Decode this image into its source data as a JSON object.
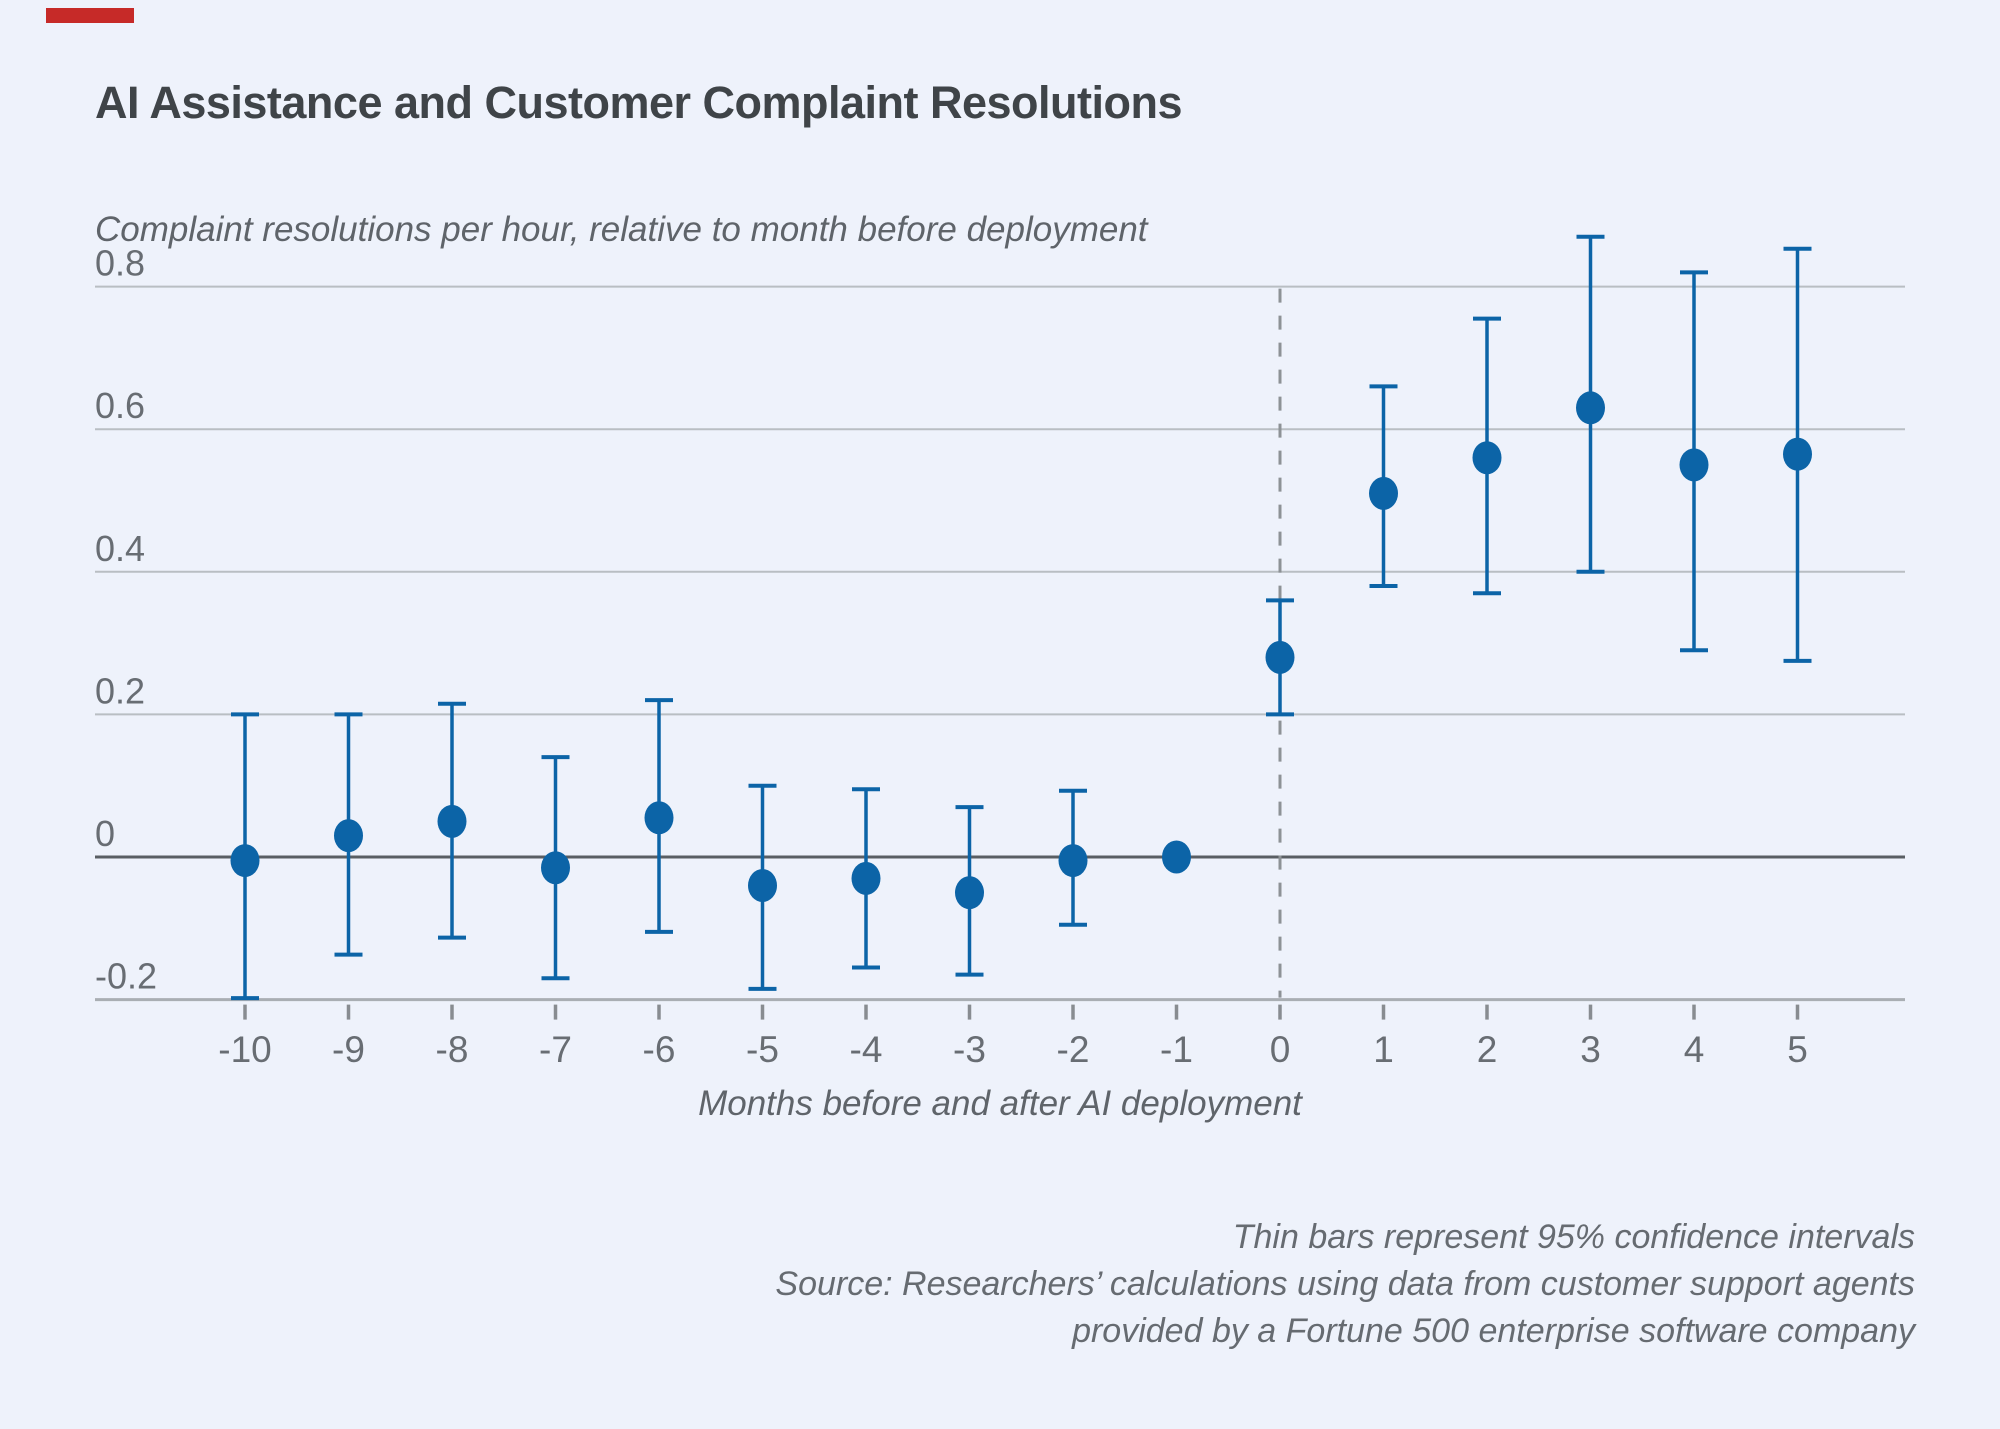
{
  "figure": {
    "accent_color": "#c62a28",
    "background_color": "#eef2fb"
  },
  "chart_data": {
    "type": "scatter",
    "title": "AI Assistance and Customer Complaint Resolutions",
    "ylabel": "Complaint resolutions per hour, relative to month before deployment",
    "xlabel": "Months before and after AI deployment",
    "footnotes": [
      "Thin bars represent 95% confidence intervals",
      "Source: Researchers’ calculations using data from customer support agents",
      "provided by a Fortune 500 enterprise software company"
    ],
    "x": [
      -10,
      -9,
      -8,
      -7,
      -6,
      -5,
      -4,
      -3,
      -2,
      -1,
      0,
      1,
      2,
      3,
      4,
      5
    ],
    "x_tick_labels": [
      "-10",
      "-9",
      "-8",
      "-7",
      "-6",
      "-5",
      "-4",
      "-3",
      "-2",
      "-1",
      "0",
      "1",
      "2",
      "3",
      "4",
      "5"
    ],
    "estimates": [
      -0.005,
      0.03,
      0.05,
      -0.015,
      0.055,
      -0.04,
      -0.03,
      -0.05,
      -0.005,
      0,
      0.28,
      0.51,
      0.56,
      0.63,
      0.55,
      0.565
    ],
    "ci_low": [
      -0.198,
      -0.137,
      -0.113,
      -0.17,
      -0.105,
      -0.185,
      -0.155,
      -0.165,
      -0.095,
      null,
      0.2,
      0.38,
      0.37,
      0.4,
      0.29,
      0.275
    ],
    "ci_high": [
      0.2,
      0.2,
      0.215,
      0.14,
      0.22,
      0.1,
      0.095,
      0.07,
      0.093,
      null,
      0.36,
      0.66,
      0.755,
      0.87,
      0.82,
      0.853
    ],
    "reference_month": -1,
    "event_line_x": 0,
    "y_ticks": [
      0.8,
      0.6,
      0.4,
      0.2,
      0,
      -0.2
    ],
    "y_tick_labels": [
      "0.8",
      "0.6",
      "0.4",
      "0.2",
      "0",
      "-0.2"
    ],
    "ylim": [
      -0.2,
      0.8
    ],
    "xlim": [
      -10,
      5
    ],
    "grid": true,
    "legend_position": "none",
    "point_color": "#0c64a7",
    "grid_color": "#b9bec3",
    "zero_line_color": "#595e63",
    "axis_line_color": "#a9aeb3",
    "dashed_line_color": "#8d9296",
    "tick_color": "#888c91",
    "tick_label_color": "#686d73"
  }
}
